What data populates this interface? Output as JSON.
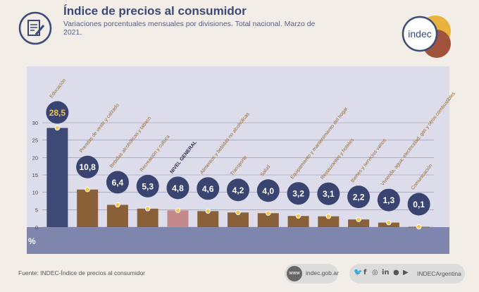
{
  "header": {
    "title": "Índice de precios al consumidor",
    "subtitle": "Variaciones porcentuales mensuales por divisiones. Total nacional. Marzo de 2021."
  },
  "logo": {
    "text": "indec"
  },
  "chart_data": {
    "type": "bar",
    "categories": [
      "Educación",
      "Prendas de vestir y calzado",
      "Bebidas alcohólicas y tabaco",
      "Recreación y cultura",
      "NIVEL GENERAL",
      "Alimentos y bebidas no alcohólicas",
      "Transporte",
      "Salud",
      "Equipamiento y mantenimiento del hogar",
      "Restaurantes y hoteles",
      "Bienes y servicios varios",
      "Vivienda, agua, electricidad, gas y otros combustibles",
      "Comunicación"
    ],
    "values": [
      28.5,
      10.8,
      6.4,
      5.3,
      4.8,
      4.6,
      4.2,
      4.0,
      3.2,
      3.1,
      2.2,
      1.3,
      0.1
    ],
    "value_labels": [
      "28,5",
      "10,8",
      "6,4",
      "5,3",
      "4,8",
      "4,6",
      "4,2",
      "4,0",
      "3,2",
      "3,1",
      "2,2",
      "1,3",
      "0,1"
    ],
    "highlight_index": 4,
    "ylabel": "%",
    "yticks": [
      0,
      5,
      10,
      15,
      20,
      25,
      30
    ],
    "ylim": [
      0,
      30
    ],
    "grid": true,
    "colors": {
      "first_bar": "#3d4a76",
      "bars": "#8a6039",
      "highlight_bar": "#c4898b",
      "label": "#9a6a30",
      "highlight_label": "#2a2a4a",
      "plot_bg": "#dcdcea",
      "axis_band": "#7f86ad",
      "value_bubble": "#3a4470",
      "value_text": "#ffffff",
      "value_text_first": "#f2c24a"
    }
  },
  "footer": {
    "source": "Fuente: INDEC-Índice de precios al consumidor",
    "website": "indec.gob.ar",
    "handle": "INDECArgentina",
    "social_icons": [
      "twitter-icon",
      "facebook-icon",
      "instagram-icon",
      "linkedin-icon",
      "spotify-icon",
      "youtube-icon"
    ]
  }
}
